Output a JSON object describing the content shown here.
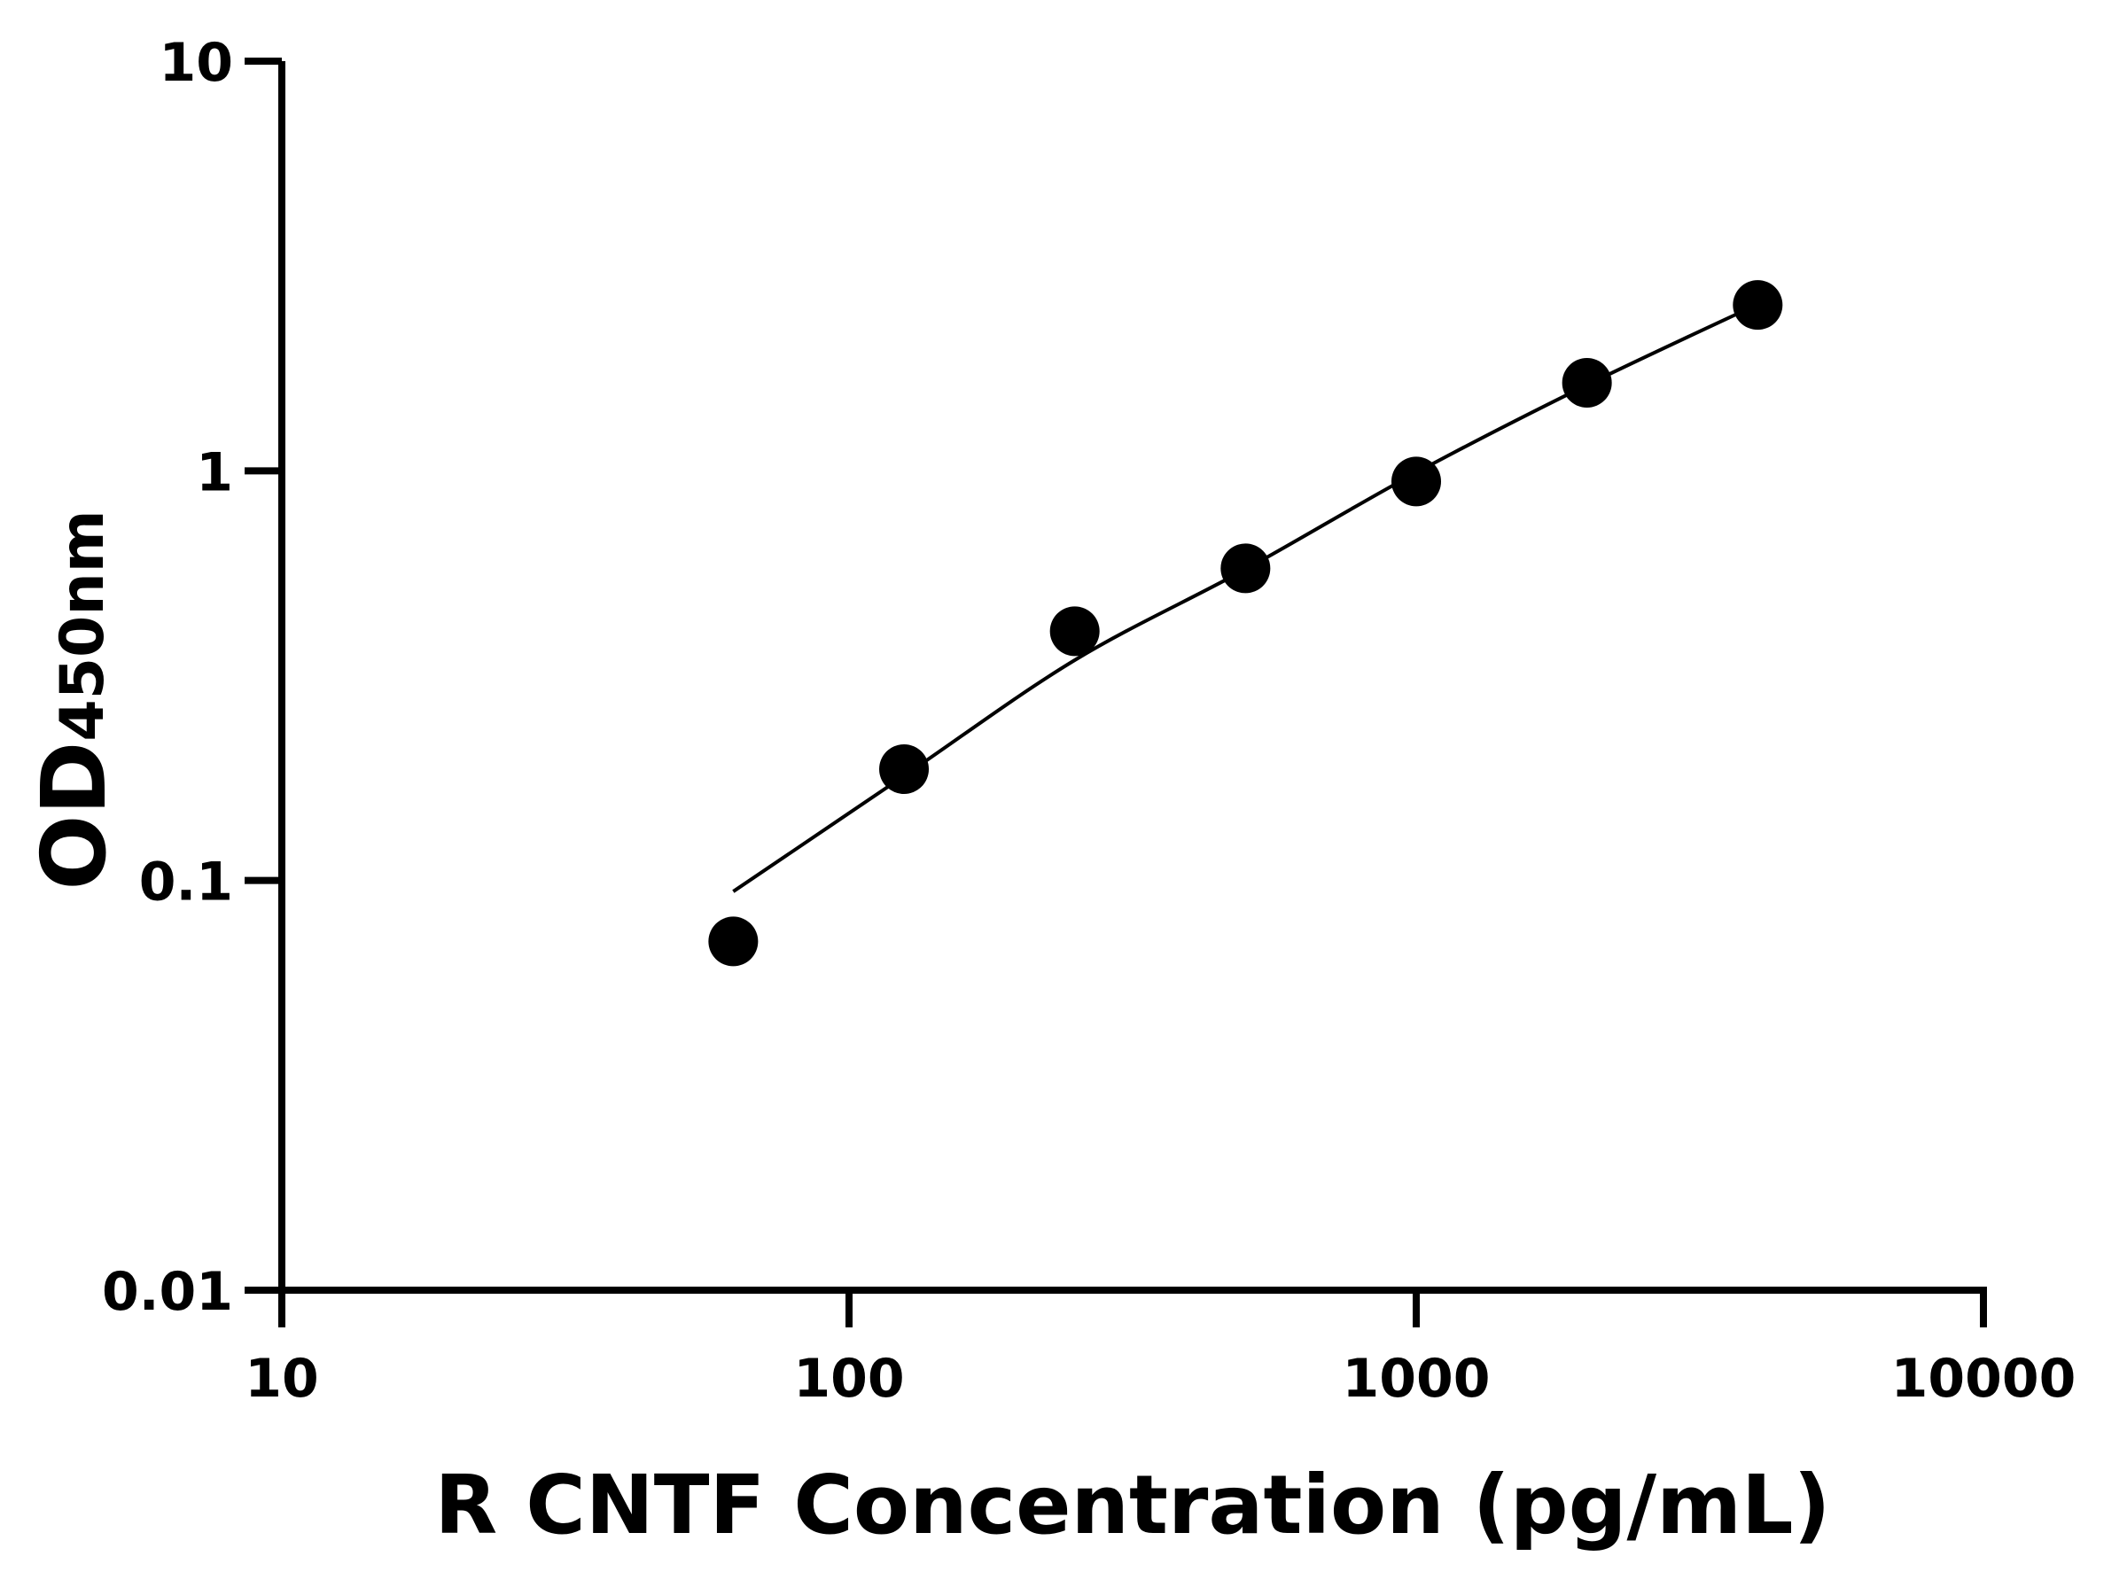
{
  "chart_data": {
    "type": "scatter",
    "xlabel": "R CNTF Concentration (pg/mL)",
    "ylabel_main": "OD",
    "ylabel_sub": "450nm",
    "x_scale": "log",
    "y_scale": "log",
    "xlim": [
      10,
      10000
    ],
    "ylim": [
      0.01,
      10
    ],
    "x_ticks": [
      "10",
      "100",
      "1000",
      "10000"
    ],
    "y_ticks": [
      "0.01",
      "0.1",
      "1",
      "10"
    ],
    "grid": false,
    "series": [
      {
        "type": "scatter",
        "x": [
          62.5,
          125,
          250,
          500,
          1000,
          2000,
          4000
        ],
        "y": [
          0.071,
          0.187,
          0.406,
          0.578,
          0.942,
          1.64,
          2.54
        ]
      },
      {
        "type": "line",
        "x": [
          62.5,
          125,
          250,
          500,
          1000,
          2000,
          4000
        ],
        "y": [
          0.094,
          0.18,
          0.345,
          0.575,
          0.99,
          1.62,
          2.55
        ]
      }
    ],
    "colors": {
      "points": "#000000",
      "curve": "#000000",
      "axes": "#000000"
    }
  }
}
